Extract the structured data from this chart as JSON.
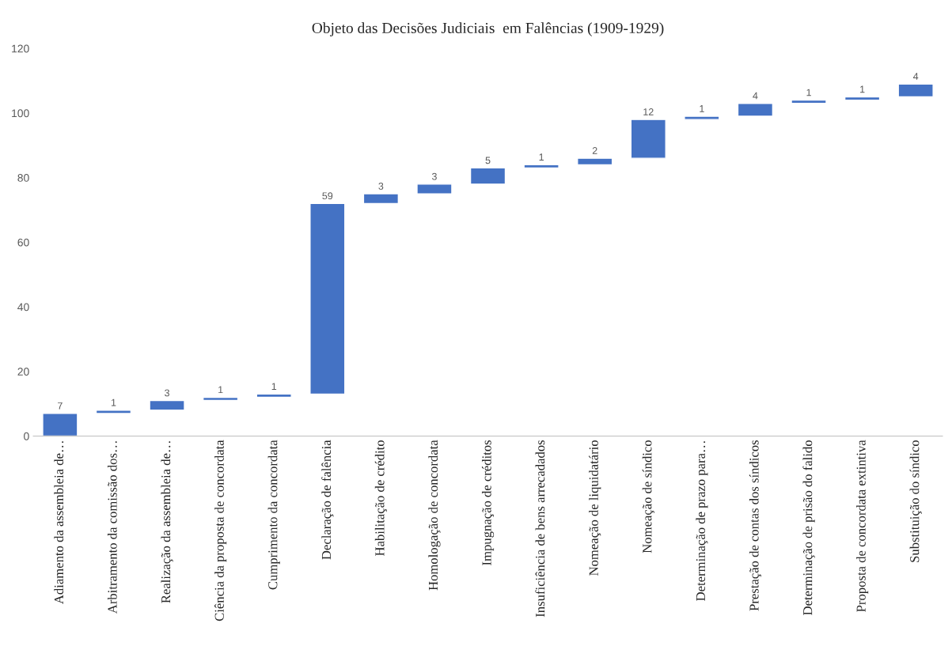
{
  "chart_data": {
    "type": "bar",
    "title": "Objeto das Decisões Judiciais  em Falências (1909-1929)",
    "categories": [
      "Adiamento da assembleia de…",
      "Arbitramento da comissão dos…",
      "Realização da assembleia de…",
      "Ciência da proposta de concordata",
      "Cumprimento da concordata",
      "Declaração de falência",
      "Habilitação de crédito",
      "Homologação de concordata",
      "Impugnação de créditos",
      "Insuficiência de bens arrecadados",
      "Nomeação de liquidatário",
      "Nomeação de síndico",
      "Determinação de prazo para…",
      "Prestação de contas dos síndicos",
      "Determinação de prisão do falido",
      "Proposta de concordata extintiva",
      "Substituição do síndico"
    ],
    "values": [
      7,
      1,
      3,
      1,
      1,
      59,
      3,
      3,
      5,
      1,
      2,
      12,
      1,
      4,
      1,
      1,
      4
    ],
    "base": [
      0,
      7,
      8,
      11,
      12,
      13,
      72,
      75,
      78,
      83,
      84,
      86,
      98,
      99,
      103,
      104,
      105
    ],
    "color": "#4472c4",
    "ylim": [
      0,
      120
    ],
    "yticks": [
      0,
      20,
      40,
      60,
      80,
      100,
      120
    ],
    "data_labels": true,
    "grid": false,
    "legend": false
  }
}
